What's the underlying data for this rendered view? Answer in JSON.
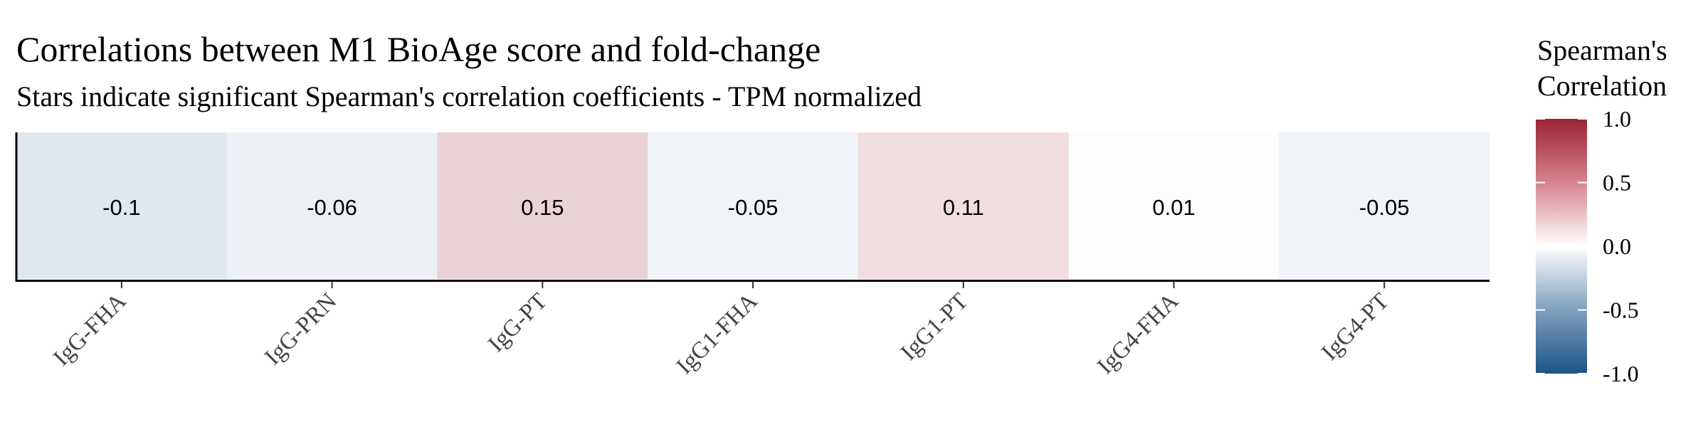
{
  "chart_data": {
    "type": "heatmap",
    "title": "Correlations between M1 BioAge score and fold-change",
    "subtitle": "Stars indicate significant Spearman's correlation coefficients - TPM normalized",
    "categories": [
      "IgG-FHA",
      "IgG-PRN",
      "IgG-PT",
      "IgG1-FHA",
      "IgG1-PT",
      "IgG4-FHA",
      "IgG4-PT"
    ],
    "values": [
      -0.1,
      -0.06,
      0.15,
      -0.05,
      0.11,
      0.01,
      -0.05
    ],
    "value_labels": [
      "-0.1",
      "-0.06",
      "0.15",
      "-0.05",
      "0.11",
      "0.01",
      "-0.05"
    ],
    "legend": {
      "title_lines": [
        "Spearman's",
        "Correlation"
      ],
      "range": [
        -1.0,
        1.0
      ],
      "ticks": [
        1.0,
        0.5,
        0.0,
        -0.5,
        -1.0
      ],
      "tick_labels": [
        "1.0",
        "0.5",
        "0.0",
        "-0.5",
        "-1.0"
      ],
      "colors": {
        "low": "#1d5487",
        "mid": "#ffffff",
        "high": "#9b2335"
      },
      "placement": "right"
    },
    "grid": false
  }
}
